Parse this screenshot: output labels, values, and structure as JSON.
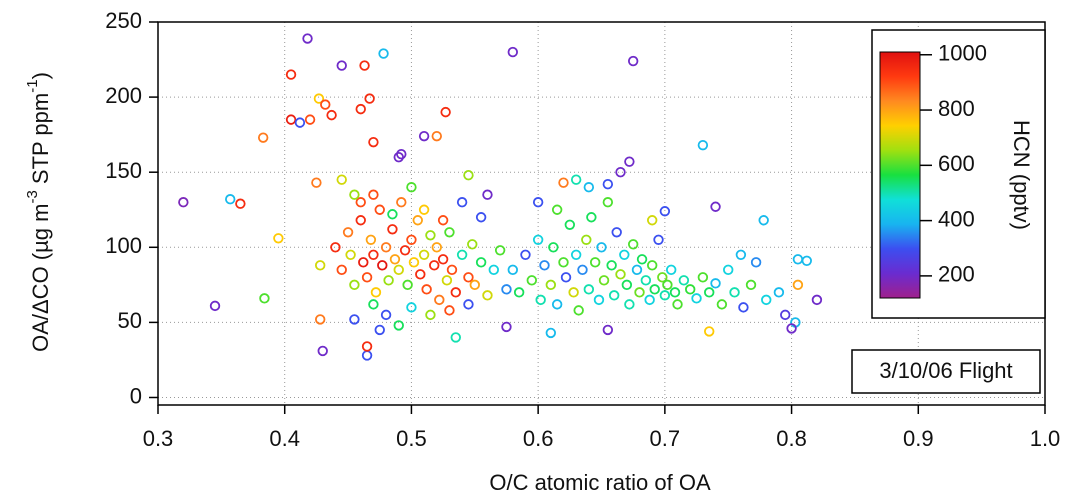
{
  "chart_data": {
    "type": "scatter",
    "xlabel": "O/C atomic ratio of OA",
    "ylabel": [
      "OA/ΔCO (µg m",
      "-3",
      " STP ppm",
      "-1",
      ")"
    ],
    "annotation": "3/10/06 Flight",
    "colorbar_label": "HCN (pptv)",
    "xlim": [
      0.3,
      1.0
    ],
    "xticks": [
      0.3,
      0.4,
      0.5,
      0.6,
      0.7,
      0.8,
      0.9,
      {
        "value": 1,
        "label": "1.0"
      }
    ],
    "ylim": [
      -5,
      250
    ],
    "yticks": [
      0,
      50,
      100,
      150,
      200,
      250
    ],
    "clim": [
      120,
      1010
    ],
    "cticks": [
      200,
      400,
      600,
      800,
      1000
    ],
    "colormap": [
      "#a0208c",
      "#6a2cd0",
      "#3c4ef0",
      "#18b4f0",
      "#10e0d8",
      "#18e040",
      "#a0e010",
      "#ffd000",
      "#ff8a20",
      "#ff3a10",
      "#e01010"
    ],
    "grid": true,
    "x": [
      0.32,
      0.345,
      0.357,
      0.365,
      0.383,
      0.384,
      0.395,
      0.405,
      0.405,
      0.412,
      0.418,
      0.42,
      0.425,
      0.427,
      0.428,
      0.43,
      0.428,
      0.432,
      0.437,
      0.445,
      0.46,
      0.463,
      0.467,
      0.47,
      0.478,
      0.47,
      0.46,
      0.465,
      0.465,
      0.49,
      0.492,
      0.51,
      0.52,
      0.527,
      0.58,
      0.675,
      0.672,
      0.73,
      0.74,
      0.778,
      0.805,
      0.812,
      0.82,
      0.805,
      0.803,
      0.8,
      0.735,
      0.655,
      0.575,
      0.535,
      0.61,
      0.44,
      0.445,
      0.45,
      0.452,
      0.455,
      0.46,
      0.462,
      0.465,
      0.468,
      0.47,
      0.472,
      0.475,
      0.477,
      0.48,
      0.482,
      0.485,
      0.487,
      0.49,
      0.492,
      0.495,
      0.497,
      0.5,
      0.502,
      0.505,
      0.507,
      0.51,
      0.512,
      0.515,
      0.518,
      0.52,
      0.522,
      0.525,
      0.528,
      0.53,
      0.532,
      0.535,
      0.54,
      0.545,
      0.548,
      0.55,
      0.555,
      0.56,
      0.565,
      0.57,
      0.575,
      0.455,
      0.475,
      0.49,
      0.5,
      0.515,
      0.53,
      0.545,
      0.47,
      0.48,
      0.5,
      0.51,
      0.445,
      0.455,
      0.485,
      0.525,
      0.54,
      0.555,
      0.545,
      0.56,
      0.58,
      0.585,
      0.59,
      0.595,
      0.6,
      0.602,
      0.605,
      0.61,
      0.612,
      0.615,
      0.62,
      0.622,
      0.625,
      0.628,
      0.63,
      0.632,
      0.635,
      0.638,
      0.64,
      0.642,
      0.645,
      0.648,
      0.65,
      0.652,
      0.655,
      0.658,
      0.66,
      0.662,
      0.665,
      0.668,
      0.67,
      0.672,
      0.675,
      0.678,
      0.68,
      0.682,
      0.685,
      0.688,
      0.69,
      0.692,
      0.695,
      0.698,
      0.7,
      0.702,
      0.705,
      0.708,
      0.71,
      0.715,
      0.72,
      0.725,
      0.73,
      0.735,
      0.74,
      0.745,
      0.75,
      0.755,
      0.76,
      0.762,
      0.768,
      0.772,
      0.78,
      0.79,
      0.795,
      0.64,
      0.655,
      0.665,
      0.63,
      0.62,
      0.615,
      0.7,
      0.69,
      0.6
    ],
    "y": [
      130,
      61,
      132,
      129,
      173,
      66,
      106,
      215,
      185,
      183,
      239,
      185,
      143,
      199,
      52,
      31,
      88,
      195,
      188,
      221,
      192,
      221,
      199,
      170,
      229,
      135,
      130,
      28,
      34,
      160,
      162,
      174,
      174,
      190,
      230,
      224,
      157,
      168,
      127,
      118,
      92,
      91,
      65,
      75,
      50,
      46,
      44,
      45,
      47,
      40,
      43,
      100,
      85,
      110,
      95,
      75,
      118,
      90,
      80,
      105,
      95,
      70,
      125,
      88,
      100,
      78,
      112,
      92,
      85,
      130,
      98,
      75,
      105,
      90,
      118,
      82,
      95,
      72,
      108,
      88,
      100,
      65,
      92,
      78,
      110,
      85,
      70,
      95,
      80,
      102,
      75,
      90,
      68,
      85,
      98,
      72,
      52,
      45,
      48,
      60,
      55,
      58,
      62,
      62,
      55,
      140,
      125,
      145,
      135,
      122,
      118,
      130,
      120,
      148,
      135,
      85,
      70,
      95,
      78,
      105,
      65,
      88,
      75,
      100,
      62,
      90,
      80,
      115,
      70,
      95,
      58,
      85,
      105,
      72,
      120,
      90,
      65,
      100,
      78,
      130,
      88,
      68,
      110,
      82,
      95,
      75,
      62,
      102,
      85,
      70,
      92,
      78,
      65,
      88,
      72,
      105,
      80,
      68,
      75,
      85,
      70,
      62,
      78,
      72,
      66,
      80,
      70,
      76,
      62,
      85,
      70,
      95,
      60,
      75,
      90,
      65,
      70,
      55,
      140,
      142,
      150,
      145,
      143,
      125,
      124,
      118,
      130
    ],
    "hcn": [
      180,
      200,
      400,
      950,
      850,
      600,
      750,
      950,
      980,
      300,
      200,
      900,
      850,
      750,
      850,
      200,
      700,
      900,
      950,
      200,
      950,
      950,
      950,
      950,
      400,
      900,
      900,
      300,
      950,
      200,
      200,
      200,
      850,
      950,
      200,
      200,
      200,
      400,
      200,
      400,
      400,
      400,
      200,
      800,
      400,
      200,
      750,
      200,
      200,
      500,
      400,
      950,
      900,
      850,
      700,
      650,
      950,
      980,
      900,
      800,
      950,
      750,
      900,
      1000,
      850,
      650,
      950,
      800,
      700,
      850,
      950,
      600,
      900,
      750,
      800,
      950,
      700,
      900,
      650,
      950,
      800,
      850,
      950,
      700,
      600,
      900,
      950,
      500,
      900,
      650,
      800,
      550,
      700,
      450,
      600,
      350,
      300,
      300,
      550,
      450,
      650,
      900,
      300,
      550,
      300,
      600,
      750,
      700,
      650,
      550,
      900,
      300,
      300,
      650,
      200,
      400,
      550,
      300,
      600,
      450,
      500,
      350,
      650,
      550,
      400,
      600,
      300,
      550,
      700,
      450,
      600,
      350,
      650,
      500,
      550,
      600,
      450,
      400,
      620,
      600,
      550,
      500,
      300,
      650,
      450,
      550,
      500,
      600,
      400,
      620,
      550,
      500,
      450,
      600,
      550,
      300,
      620,
      500,
      600,
      450,
      550,
      600,
      500,
      580,
      450,
      600,
      550,
      400,
      600,
      450,
      500,
      400,
      300,
      600,
      350,
      450,
      400,
      250,
      400,
      300,
      200,
      500,
      850,
      600,
      300,
      700,
      300
    ]
  }
}
